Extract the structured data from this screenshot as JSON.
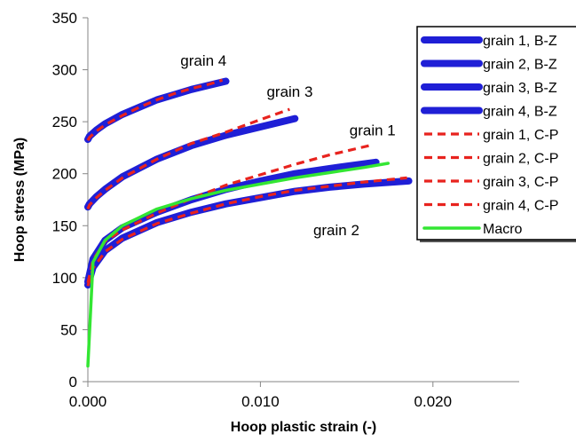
{
  "chart_data": {
    "type": "line",
    "title": "",
    "xlabel": "Hoop plastic strain (-)",
    "ylabel": "Hoop stress (MPa)",
    "xlim": [
      0.0,
      0.025
    ],
    "ylim": [
      0,
      350
    ],
    "xticks": [
      0.0,
      0.01,
      0.02
    ],
    "xtick_labels": [
      "0.000",
      "0.010",
      "0.020"
    ],
    "yticks": [
      0,
      50,
      100,
      150,
      200,
      250,
      300,
      350
    ],
    "ytick_labels": [
      "0",
      "50",
      "100",
      "150",
      "200",
      "250",
      "300",
      "350"
    ],
    "grid": false,
    "legend_position": "top-right",
    "annotations": [
      {
        "text": "grain 4",
        "x": 0.0067,
        "y": 304
      },
      {
        "text": "grain 3",
        "x": 0.0117,
        "y": 274
      },
      {
        "text": "grain 1",
        "x": 0.0165,
        "y": 237
      },
      {
        "text": "grain 2",
        "x": 0.0144,
        "y": 141
      }
    ],
    "series": [
      {
        "name": "grain 1, B-Z",
        "color": "#1f1fd6",
        "style": "solid-thick",
        "x": [
          0,
          0.0003,
          0.001,
          0.002,
          0.004,
          0.006,
          0.008,
          0.01,
          0.012,
          0.014,
          0.0167
        ],
        "y": [
          96,
          118,
          136,
          148,
          163,
          175,
          185,
          193,
          200,
          205,
          211
        ]
      },
      {
        "name": "grain 2, B-Z",
        "color": "#1f1fd6",
        "style": "solid-thick",
        "x": [
          0,
          0.0003,
          0.001,
          0.002,
          0.004,
          0.006,
          0.008,
          0.01,
          0.012,
          0.014,
          0.016,
          0.0186
        ],
        "y": [
          93,
          110,
          126,
          138,
          153,
          163,
          171,
          177,
          183,
          187,
          190,
          193
        ]
      },
      {
        "name": "grain 3, B-Z",
        "color": "#1f1fd6",
        "style": "solid-thick",
        "x": [
          0,
          0.0001,
          0.0005,
          0.001,
          0.002,
          0.004,
          0.006,
          0.008,
          0.01,
          0.012
        ],
        "y": [
          168,
          171,
          178,
          185,
          197,
          214,
          227,
          237,
          245,
          253
        ]
      },
      {
        "name": "grain 4, B-Z",
        "color": "#1f1fd6",
        "style": "solid-thick",
        "x": [
          0,
          0.0001,
          0.0005,
          0.001,
          0.002,
          0.003,
          0.004,
          0.005,
          0.006,
          0.007,
          0.008
        ],
        "y": [
          233,
          236,
          242,
          248,
          257,
          264,
          271,
          276,
          281,
          285,
          289
        ]
      },
      {
        "name": "grain 1, C-P",
        "color": "#e8231e",
        "style": "dashed",
        "x": [
          0,
          0.0003,
          0.001,
          0.002,
          0.004,
          0.006,
          0.008,
          0.01,
          0.012,
          0.014,
          0.0163
        ],
        "y": [
          95,
          117,
          135,
          146,
          162,
          176,
          189,
          199,
          209,
          218,
          227
        ]
      },
      {
        "name": "grain 2, C-P",
        "color": "#e8231e",
        "style": "dashed",
        "x": [
          0,
          0.0003,
          0.001,
          0.002,
          0.004,
          0.006,
          0.008,
          0.01,
          0.012,
          0.014,
          0.016,
          0.0185
        ],
        "y": [
          92,
          109,
          125,
          137,
          152,
          162,
          171,
          178,
          184,
          188,
          192,
          196
        ]
      },
      {
        "name": "grain 3, C-P",
        "color": "#e8231e",
        "style": "dashed",
        "x": [
          0,
          0.0001,
          0.0005,
          0.001,
          0.002,
          0.004,
          0.006,
          0.008,
          0.01,
          0.0117
        ],
        "y": [
          166,
          170,
          177,
          184,
          196,
          214,
          229,
          240,
          252,
          262
        ]
      },
      {
        "name": "grain 4, C-P",
        "color": "#e8231e",
        "style": "dashed",
        "x": [
          0,
          0.0001,
          0.0005,
          0.001,
          0.002,
          0.003,
          0.004,
          0.005,
          0.006,
          0.007,
          0.0078
        ],
        "y": [
          232,
          235,
          241,
          247,
          256,
          264,
          271,
          277,
          282,
          286,
          290
        ]
      },
      {
        "name": "Macro",
        "color": "#33e633",
        "style": "solid",
        "x": [
          0,
          0.0003,
          0.001,
          0.002,
          0.004,
          0.006,
          0.008,
          0.01,
          0.012,
          0.014,
          0.016,
          0.0174
        ],
        "y": [
          15,
          115,
          136,
          150,
          166,
          176,
          184,
          190,
          196,
          201,
          206,
          210
        ]
      }
    ]
  }
}
